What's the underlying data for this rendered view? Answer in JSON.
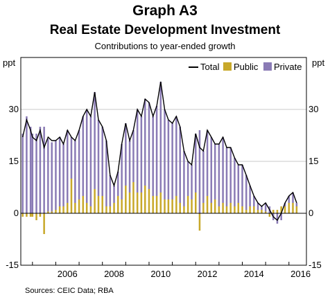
{
  "header": {
    "graph_number": "Graph A3",
    "title": "Real Estate Development Investment",
    "subtitle": "Contributions to year-ended growth"
  },
  "footer": {
    "sources": "Sources:   CEIC Data; RBA"
  },
  "colors": {
    "total": "#000000",
    "public": "#c8a82a",
    "private": "#8a7bb5",
    "private_edge": "#6f62a0",
    "grid": "#c9c9c9"
  },
  "chart_data": {
    "type": "bar",
    "unit_left": "ppt",
    "unit_right": "ppt",
    "ylim": [
      -15,
      45
    ],
    "yticks": [
      -15,
      0,
      15,
      30
    ],
    "xlim": [
      2004.5,
      2016.75
    ],
    "xticks": [
      "2006",
      "2008",
      "2010",
      "2012",
      "2014",
      "2016"
    ],
    "legend": {
      "placement": "top-right",
      "items": [
        "Total",
        "Public",
        "Private"
      ]
    },
    "grid": true,
    "series": [
      {
        "name": "Total",
        "kind": "line",
        "points": [
          [
            2004.58,
            22
          ],
          [
            2004.75,
            27
          ],
          [
            2004.92,
            24
          ],
          [
            2005.0,
            22
          ],
          [
            2005.17,
            21
          ],
          [
            2005.33,
            24
          ],
          [
            2005.5,
            19
          ],
          [
            2005.67,
            22
          ],
          [
            2005.83,
            21
          ],
          [
            2006.0,
            21
          ],
          [
            2006.17,
            22
          ],
          [
            2006.33,
            20
          ],
          [
            2006.5,
            24
          ],
          [
            2006.67,
            22
          ],
          [
            2006.83,
            21
          ],
          [
            2007.0,
            24
          ],
          [
            2007.17,
            28
          ],
          [
            2007.33,
            30
          ],
          [
            2007.5,
            28
          ],
          [
            2007.67,
            35
          ],
          [
            2007.83,
            27
          ],
          [
            2008.0,
            25
          ],
          [
            2008.17,
            21
          ],
          [
            2008.33,
            11
          ],
          [
            2008.5,
            8
          ],
          [
            2008.67,
            12
          ],
          [
            2008.83,
            20
          ],
          [
            2009.0,
            26
          ],
          [
            2009.17,
            21
          ],
          [
            2009.33,
            24
          ],
          [
            2009.5,
            30
          ],
          [
            2009.67,
            28
          ],
          [
            2009.83,
            33
          ],
          [
            2010.0,
            32
          ],
          [
            2010.17,
            28
          ],
          [
            2010.33,
            31
          ],
          [
            2010.5,
            38
          ],
          [
            2010.67,
            30
          ],
          [
            2010.83,
            27
          ],
          [
            2011.0,
            26
          ],
          [
            2011.17,
            28
          ],
          [
            2011.33,
            25
          ],
          [
            2011.5,
            18
          ],
          [
            2011.67,
            15
          ],
          [
            2011.83,
            14
          ],
          [
            2012.0,
            23
          ],
          [
            2012.17,
            19
          ],
          [
            2012.33,
            18
          ],
          [
            2012.5,
            24
          ],
          [
            2012.67,
            22
          ],
          [
            2012.83,
            20
          ],
          [
            2013.0,
            20
          ],
          [
            2013.17,
            22
          ],
          [
            2013.33,
            19
          ],
          [
            2013.5,
            19
          ],
          [
            2013.67,
            16
          ],
          [
            2013.83,
            14
          ],
          [
            2014.0,
            14
          ],
          [
            2014.17,
            11
          ],
          [
            2014.33,
            8
          ],
          [
            2014.5,
            5
          ],
          [
            2014.67,
            3
          ],
          [
            2014.83,
            2
          ],
          [
            2015.0,
            3
          ],
          [
            2015.17,
            1
          ],
          [
            2015.33,
            -1
          ],
          [
            2015.5,
            -2
          ],
          [
            2015.67,
            0
          ],
          [
            2015.83,
            3
          ],
          [
            2016.0,
            5
          ],
          [
            2016.17,
            6
          ],
          [
            2016.33,
            3
          ]
        ]
      },
      {
        "name": "Public",
        "kind": "bar",
        "points": [
          [
            2004.58,
            -1
          ],
          [
            2004.75,
            -1
          ],
          [
            2004.92,
            -1
          ],
          [
            2005.0,
            -1
          ],
          [
            2005.17,
            -2
          ],
          [
            2005.33,
            -1
          ],
          [
            2005.5,
            -6
          ],
          [
            2005.67,
            0.5
          ],
          [
            2005.83,
            0.5
          ],
          [
            2006.0,
            1
          ],
          [
            2006.17,
            2
          ],
          [
            2006.33,
            2
          ],
          [
            2006.5,
            3
          ],
          [
            2006.67,
            10
          ],
          [
            2006.83,
            3
          ],
          [
            2007.0,
            4
          ],
          [
            2007.17,
            5
          ],
          [
            2007.33,
            3
          ],
          [
            2007.5,
            2
          ],
          [
            2007.67,
            7
          ],
          [
            2007.83,
            5
          ],
          [
            2008.0,
            5
          ],
          [
            2008.17,
            2
          ],
          [
            2008.33,
            2
          ],
          [
            2008.5,
            3
          ],
          [
            2008.67,
            5
          ],
          [
            2008.83,
            4
          ],
          [
            2009.0,
            8
          ],
          [
            2009.17,
            6
          ],
          [
            2009.33,
            9
          ],
          [
            2009.5,
            6
          ],
          [
            2009.67,
            6
          ],
          [
            2009.83,
            8
          ],
          [
            2010.0,
            7
          ],
          [
            2010.17,
            5
          ],
          [
            2010.33,
            5
          ],
          [
            2010.5,
            6
          ],
          [
            2010.67,
            4
          ],
          [
            2010.83,
            4
          ],
          [
            2011.0,
            4
          ],
          [
            2011.17,
            5
          ],
          [
            2011.33,
            3
          ],
          [
            2011.5,
            2
          ],
          [
            2011.67,
            5
          ],
          [
            2011.83,
            4
          ],
          [
            2012.0,
            6
          ],
          [
            2012.17,
            -5
          ],
          [
            2012.33,
            3
          ],
          [
            2012.5,
            5
          ],
          [
            2012.67,
            3
          ],
          [
            2012.83,
            4
          ],
          [
            2013.0,
            2
          ],
          [
            2013.17,
            3
          ],
          [
            2013.33,
            2
          ],
          [
            2013.5,
            3
          ],
          [
            2013.67,
            2
          ],
          [
            2013.83,
            3
          ],
          [
            2014.0,
            2
          ],
          [
            2014.17,
            1
          ],
          [
            2014.33,
            2
          ],
          [
            2014.5,
            2
          ],
          [
            2014.67,
            1
          ],
          [
            2014.83,
            1
          ],
          [
            2015.0,
            0.5
          ],
          [
            2015.17,
            -1
          ],
          [
            2015.33,
            1
          ],
          [
            2015.5,
            1
          ],
          [
            2015.67,
            2
          ],
          [
            2015.83,
            2
          ],
          [
            2016.0,
            3
          ],
          [
            2016.17,
            3
          ],
          [
            2016.33,
            2
          ]
        ]
      },
      {
        "name": "Private",
        "kind": "bar",
        "points": [
          [
            2004.58,
            23
          ],
          [
            2004.75,
            28
          ],
          [
            2004.92,
            25
          ],
          [
            2005.0,
            23
          ],
          [
            2005.17,
            23
          ],
          [
            2005.33,
            25
          ],
          [
            2005.5,
            25
          ],
          [
            2005.67,
            21
          ],
          [
            2005.83,
            20
          ],
          [
            2006.0,
            20
          ],
          [
            2006.17,
            20
          ],
          [
            2006.33,
            18
          ],
          [
            2006.5,
            21
          ],
          [
            2006.67,
            12
          ],
          [
            2006.83,
            18
          ],
          [
            2007.0,
            20
          ],
          [
            2007.17,
            23
          ],
          [
            2007.33,
            27
          ],
          [
            2007.5,
            26
          ],
          [
            2007.67,
            28
          ],
          [
            2007.83,
            22
          ],
          [
            2008.0,
            20
          ],
          [
            2008.17,
            19
          ],
          [
            2008.33,
            9
          ],
          [
            2008.5,
            5
          ],
          [
            2008.67,
            7
          ],
          [
            2008.83,
            16
          ],
          [
            2009.0,
            18
          ],
          [
            2009.17,
            15
          ],
          [
            2009.33,
            15
          ],
          [
            2009.5,
            24
          ],
          [
            2009.67,
            22
          ],
          [
            2009.83,
            25
          ],
          [
            2010.0,
            25
          ],
          [
            2010.17,
            23
          ],
          [
            2010.33,
            26
          ],
          [
            2010.5,
            32
          ],
          [
            2010.67,
            26
          ],
          [
            2010.83,
            23
          ],
          [
            2011.0,
            22
          ],
          [
            2011.17,
            23
          ],
          [
            2011.33,
            22
          ],
          [
            2011.5,
            16
          ],
          [
            2011.67,
            10
          ],
          [
            2011.83,
            10
          ],
          [
            2012.0,
            17
          ],
          [
            2012.17,
            24
          ],
          [
            2012.33,
            15
          ],
          [
            2012.5,
            19
          ],
          [
            2012.67,
            19
          ],
          [
            2012.83,
            16
          ],
          [
            2013.0,
            18
          ],
          [
            2013.17,
            19
          ],
          [
            2013.33,
            17
          ],
          [
            2013.5,
            16
          ],
          [
            2013.67,
            14
          ],
          [
            2013.83,
            11
          ],
          [
            2014.0,
            12
          ],
          [
            2014.17,
            10
          ],
          [
            2014.33,
            6
          ],
          [
            2014.5,
            3
          ],
          [
            2014.67,
            2
          ],
          [
            2014.83,
            1
          ],
          [
            2015.0,
            2.5
          ],
          [
            2015.17,
            2
          ],
          [
            2015.33,
            -2
          ],
          [
            2015.5,
            -3
          ],
          [
            2015.67,
            -2
          ],
          [
            2015.83,
            1
          ],
          [
            2016.0,
            2
          ],
          [
            2016.17,
            3
          ],
          [
            2016.33,
            1
          ]
        ]
      }
    ]
  }
}
